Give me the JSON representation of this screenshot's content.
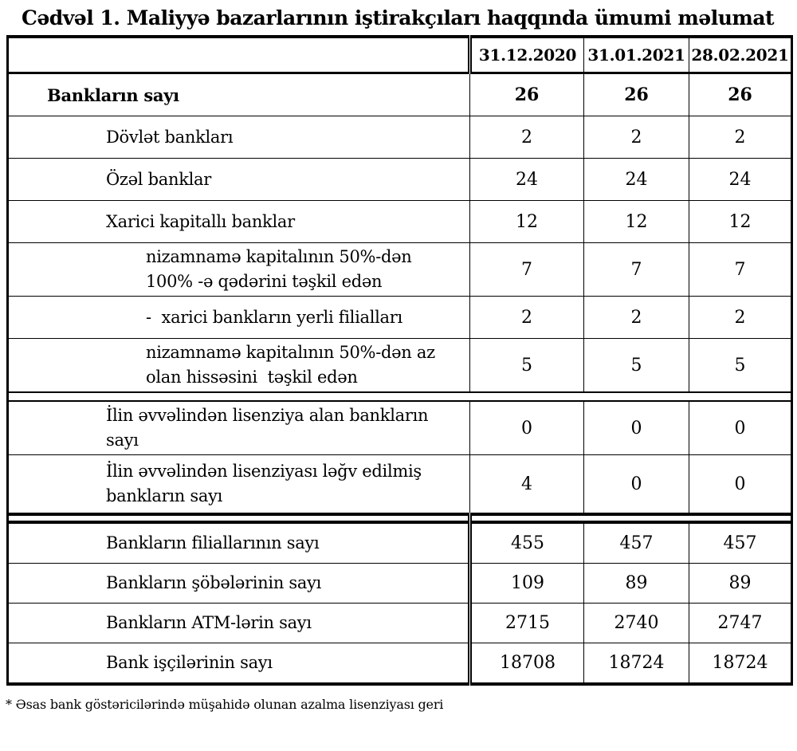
{
  "title": "Cədvəl 1. Maliyyə bazarlarının iştirakçıları haqqında ümumi məlumat",
  "footnote": "* Əsas bank göstəricilərində müşahidə olunan azalma lisenziyası geri",
  "colors": {
    "text": "#000000",
    "background": "#ffffff",
    "border": "#000000"
  },
  "chart_data": {
    "type": "table",
    "title": "Cədvəl 1. Maliyyə bazarlarının iştirakçıları haqqında ümumi məlumat",
    "columns": [
      "31.12.2020",
      "31.01.2021",
      "28.02.2021"
    ],
    "rows": [
      {
        "label": "Bankların sayı",
        "values": [
          "26",
          "26",
          "26"
        ]
      },
      {
        "label": "Dövlət bankları",
        "values": [
          "2",
          "2",
          "2"
        ]
      },
      {
        "label": "Özəl banklar",
        "values": [
          "24",
          "24",
          "24"
        ]
      },
      {
        "label": "Xarici kapitallı banklar",
        "values": [
          "12",
          "12",
          "12"
        ]
      },
      {
        "label": "nizamnamə kapitalının 50%-dən 100% -ə qədərini təşkil edən",
        "values": [
          "7",
          "7",
          "7"
        ]
      },
      {
        "label": "- xarici bankların yerli filialları",
        "values": [
          "2",
          "2",
          "2"
        ]
      },
      {
        "label": "nizamnamə kapitalının 50%-dən az olan hissəsini təşkil edən",
        "values": [
          "5",
          "5",
          "5"
        ]
      },
      {
        "label": "İlin əvvəlindən lisenziya alan bankların sayı",
        "values": [
          "0",
          "0",
          "0"
        ]
      },
      {
        "label": "İlin əvvəlindən lisenziyası ləğv edilmiş bankların sayı",
        "values": [
          "4",
          "0",
          "0"
        ]
      },
      {
        "label": "Bankların filiallarının sayı",
        "values": [
          "455",
          "457",
          "457"
        ]
      },
      {
        "label": "Bankların şöbələrinin sayı",
        "values": [
          "109",
          "89",
          "89"
        ]
      },
      {
        "label": "Bankların ATM-lərin sayı",
        "values": [
          "2715",
          "2740",
          "2747"
        ]
      },
      {
        "label": "Bank işçilərinin sayı",
        "values": [
          "18708",
          "18724",
          "18724"
        ]
      }
    ]
  },
  "table": {
    "header": {
      "label": "",
      "dates": [
        "31.12.2020",
        "31.01.2021",
        "28.02.2021"
      ]
    },
    "section1": [
      {
        "label": "Bankların sayı",
        "values": [
          "26",
          "26",
          "26"
        ],
        "bold": true,
        "indent": 1
      },
      {
        "label": "Dövlət bankları",
        "values": [
          "2",
          "2",
          "2"
        ],
        "indent": 2
      },
      {
        "label": "Özəl banklar",
        "values": [
          "24",
          "24",
          "24"
        ],
        "indent": 2
      },
      {
        "label": "Xarici kapitallı banklar",
        "values": [
          "12",
          "12",
          "12"
        ],
        "indent": 2
      },
      {
        "label": "nizamnamə kapitalının 50%-dən\n100% -ə qədərini təşkil edən",
        "values": [
          "7",
          "7",
          "7"
        ],
        "indent": 3,
        "two_line": true
      },
      {
        "label": "-  xarici bankların yerli filialları",
        "values": [
          "2",
          "2",
          "2"
        ],
        "indent": 3
      },
      {
        "label": "nizamnamə kapitalının 50%-dən az\nolan hissəsini  təşkil edən",
        "values": [
          "5",
          "5",
          "5"
        ],
        "indent": 3,
        "two_line": true
      },
      {
        "spacer": true
      },
      {
        "label": "İlin əvvəlindən lisenziya alan bankların\nsayı",
        "values": [
          "0",
          "0",
          "0"
        ],
        "indent": 2,
        "two_line": true
      },
      {
        "label": "İlin əvvəlindən lisenziyası ləğv edilmiş\nbankların sayı",
        "values": [
          "4",
          "0",
          "0"
        ],
        "indent": 2,
        "two_line": true,
        "tall": true
      }
    ],
    "section2": [
      {
        "label": "Bankların filiallarının sayı",
        "values": [
          "455",
          "457",
          "457"
        ],
        "indent": 2
      },
      {
        "label": "Bankların şöbələrinin sayı",
        "values": [
          "109",
          "89",
          "89"
        ],
        "indent": 2
      },
      {
        "label": "Bankların ATM-lərin sayı",
        "values": [
          "2715",
          "2740",
          "2747"
        ],
        "indent": 2
      },
      {
        "label": "Bank işçilərinin sayı",
        "values": [
          "18708",
          "18724",
          "18724"
        ],
        "indent": 2
      }
    ]
  }
}
